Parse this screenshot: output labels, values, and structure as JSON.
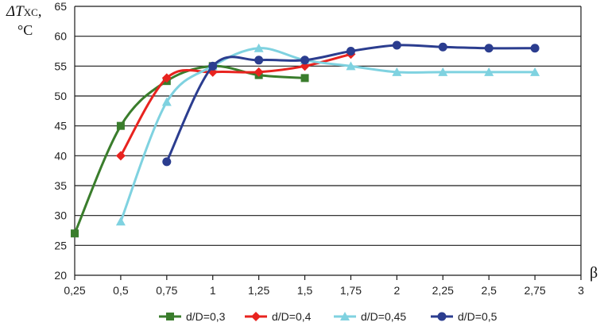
{
  "chart_data": {
    "type": "line",
    "ylabel_symbol": "ΔT",
    "ylabel_subscript": "XC",
    "ylabel_suffix": ",",
    "ylabel_unit": "°C",
    "xlabel": "β",
    "xlim": [
      0.25,
      3
    ],
    "ylim": [
      20,
      65
    ],
    "xticks": [
      "0,25",
      "0,5",
      "0,75",
      "1",
      "1,25",
      "1,5",
      "1,75",
      "2",
      "2,25",
      "2,5",
      "2,75",
      "3"
    ],
    "yticks": [
      "20",
      "25",
      "30",
      "35",
      "40",
      "45",
      "50",
      "55",
      "60",
      "65"
    ],
    "grid": "horizontal",
    "legend_position": "bottom",
    "series": [
      {
        "name": "d/D=0,3",
        "color": "#3a7d2c",
        "marker": "square",
        "points": [
          [
            0.25,
            27
          ],
          [
            0.5,
            45
          ],
          [
            0.75,
            52.5
          ],
          [
            1,
            55
          ],
          [
            1.25,
            53.5
          ],
          [
            1.5,
            53
          ]
        ]
      },
      {
        "name": "d/D=0,4",
        "color": "#e8231f",
        "marker": "diamond",
        "points": [
          [
            0.5,
            40
          ],
          [
            0.75,
            53
          ],
          [
            1,
            54
          ],
          [
            1.25,
            54
          ],
          [
            1.5,
            55
          ],
          [
            1.75,
            57
          ]
        ]
      },
      {
        "name": "d/D=0,45",
        "color": "#7fd2e0",
        "marker": "triangle",
        "points": [
          [
            0.5,
            29
          ],
          [
            0.75,
            49
          ],
          [
            1,
            55
          ],
          [
            1.25,
            58
          ],
          [
            1.5,
            56
          ],
          [
            1.75,
            55
          ],
          [
            2,
            54
          ],
          [
            2.25,
            54
          ],
          [
            2.5,
            54
          ],
          [
            2.75,
            54
          ]
        ]
      },
      {
        "name": "d/D=0,5",
        "color": "#2b3d8f",
        "marker": "circle",
        "points": [
          [
            0.75,
            39
          ],
          [
            1,
            55
          ],
          [
            1.25,
            56
          ],
          [
            1.5,
            56
          ],
          [
            1.75,
            57.5
          ],
          [
            2,
            58.5
          ],
          [
            2.25,
            58.2
          ],
          [
            2.5,
            58
          ],
          [
            2.75,
            58
          ]
        ]
      }
    ]
  }
}
